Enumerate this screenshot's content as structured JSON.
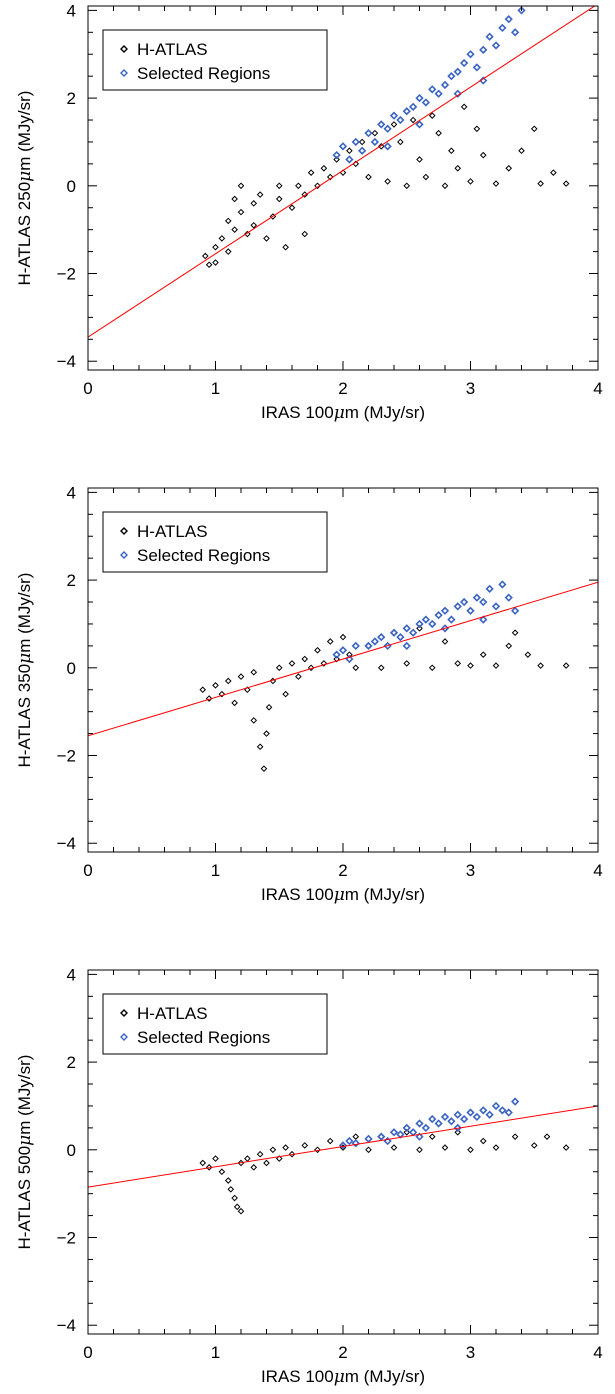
{
  "figure": {
    "panels": [
      {
        "xlabel": {
          "pre": "IRAS 100",
          "mu": "μ",
          "post": "m (MJy/sr)"
        },
        "ylabel": {
          "pre": "H-ATLAS 250",
          "mu": "μ",
          "post": "m (MJy/sr)"
        },
        "legend": [
          "H-ATLAS",
          "Selected Regions"
        ]
      },
      {
        "xlabel": {
          "pre": "IRAS 100",
          "mu": "μ",
          "post": "m (MJy/sr)"
        },
        "ylabel": {
          "pre": "H-ATLAS 350",
          "mu": "μ",
          "post": "m (MJy/sr)"
        },
        "legend": [
          "H-ATLAS",
          "Selected Regions"
        ]
      },
      {
        "xlabel": {
          "pre": "IRAS 100",
          "mu": "μ",
          "post": "m (MJy/sr)"
        },
        "ylabel": {
          "pre": "H-ATLAS 500",
          "mu": "μ",
          "post": "m (MJy/sr)"
        },
        "legend": [
          "H-ATLAS",
          "Selected Regions"
        ]
      }
    ]
  },
  "chart_data": [
    {
      "type": "scatter",
      "xlim": [
        0,
        4
      ],
      "ylim": [
        -4.2,
        4.1
      ],
      "xticks": [
        0,
        1,
        2,
        3,
        4
      ],
      "yticks": [
        -4,
        -2,
        0,
        2,
        4
      ],
      "grid": false,
      "legend_position": "top-left",
      "fit_line": {
        "x": [
          0,
          4
        ],
        "y": [
          -3.45,
          4.15
        ],
        "color": "#ff0000"
      },
      "series": [
        {
          "name": "H-ATLAS",
          "color": "#000000",
          "marker": "diamond",
          "points": [
            [
              0.92,
              -1.6
            ],
            [
              0.95,
              -1.8
            ],
            [
              1.0,
              -1.4
            ],
            [
              1.0,
              -1.75
            ],
            [
              1.05,
              -1.2
            ],
            [
              1.1,
              -1.5
            ],
            [
              1.1,
              -0.8
            ],
            [
              1.15,
              -0.3
            ],
            [
              1.15,
              -1.0
            ],
            [
              1.2,
              0.0
            ],
            [
              1.2,
              -0.6
            ],
            [
              1.25,
              -1.1
            ],
            [
              1.3,
              -0.9
            ],
            [
              1.3,
              -0.4
            ],
            [
              1.35,
              -0.2
            ],
            [
              1.4,
              -1.2
            ],
            [
              1.45,
              -0.7
            ],
            [
              1.5,
              0.0
            ],
            [
              1.5,
              -0.3
            ],
            [
              1.55,
              -1.4
            ],
            [
              1.6,
              -0.5
            ],
            [
              1.65,
              0.0
            ],
            [
              1.7,
              -0.2
            ],
            [
              1.7,
              -1.1
            ],
            [
              1.75,
              0.3
            ],
            [
              1.8,
              0.0
            ],
            [
              1.85,
              0.4
            ],
            [
              1.9,
              0.2
            ],
            [
              1.95,
              0.6
            ],
            [
              2.0,
              0.3
            ],
            [
              2.05,
              0.8
            ],
            [
              2.1,
              0.5
            ],
            [
              2.15,
              1.0
            ],
            [
              2.2,
              0.2
            ],
            [
              2.25,
              1.2
            ],
            [
              2.3,
              0.9
            ],
            [
              2.35,
              0.1
            ],
            [
              2.4,
              1.4
            ],
            [
              2.45,
              1.0
            ],
            [
              2.5,
              0.0
            ],
            [
              2.55,
              1.5
            ],
            [
              2.6,
              0.6
            ],
            [
              2.65,
              0.2
            ],
            [
              2.7,
              1.6
            ],
            [
              2.75,
              1.2
            ],
            [
              2.8,
              0.0
            ],
            [
              2.85,
              0.8
            ],
            [
              2.9,
              0.4
            ],
            [
              2.95,
              1.8
            ],
            [
              3.0,
              0.1
            ],
            [
              3.05,
              1.3
            ],
            [
              3.1,
              0.7
            ],
            [
              3.2,
              0.05
            ],
            [
              3.3,
              0.4
            ],
            [
              3.4,
              0.8
            ],
            [
              3.5,
              1.3
            ],
            [
              3.55,
              0.05
            ],
            [
              3.65,
              0.3
            ],
            [
              3.75,
              0.05
            ]
          ]
        },
        {
          "name": "Selected Regions",
          "color": "#3a64c4",
          "marker": "diamond",
          "points": [
            [
              1.95,
              0.7
            ],
            [
              2.0,
              0.9
            ],
            [
              2.05,
              0.6
            ],
            [
              2.1,
              1.0
            ],
            [
              2.15,
              0.8
            ],
            [
              2.2,
              1.2
            ],
            [
              2.25,
              1.0
            ],
            [
              2.3,
              1.4
            ],
            [
              2.35,
              1.3
            ],
            [
              2.4,
              1.6
            ],
            [
              2.45,
              1.5
            ],
            [
              2.5,
              1.7
            ],
            [
              2.55,
              1.8
            ],
            [
              2.6,
              2.0
            ],
            [
              2.65,
              1.9
            ],
            [
              2.7,
              2.2
            ],
            [
              2.75,
              2.1
            ],
            [
              2.8,
              2.3
            ],
            [
              2.85,
              2.5
            ],
            [
              2.9,
              2.6
            ],
            [
              2.95,
              2.8
            ],
            [
              3.0,
              3.0
            ],
            [
              3.05,
              2.7
            ],
            [
              3.1,
              3.1
            ],
            [
              3.15,
              3.4
            ],
            [
              3.2,
              3.2
            ],
            [
              3.25,
              3.6
            ],
            [
              3.3,
              3.8
            ],
            [
              3.35,
              3.5
            ],
            [
              3.4,
              4.0
            ],
            [
              2.35,
              0.9
            ],
            [
              2.6,
              1.4
            ],
            [
              2.9,
              2.1
            ],
            [
              3.1,
              2.4
            ]
          ]
        }
      ]
    },
    {
      "type": "scatter",
      "xlim": [
        0,
        4
      ],
      "ylim": [
        -4.2,
        4.1
      ],
      "xticks": [
        0,
        1,
        2,
        3,
        4
      ],
      "yticks": [
        -4,
        -2,
        0,
        2,
        4
      ],
      "grid": false,
      "legend_position": "top-left",
      "fit_line": {
        "x": [
          0,
          4
        ],
        "y": [
          -1.55,
          1.95
        ],
        "color": "#ff0000"
      },
      "series": [
        {
          "name": "H-ATLAS",
          "color": "#000000",
          "marker": "diamond",
          "points": [
            [
              0.9,
              -0.5
            ],
            [
              0.95,
              -0.7
            ],
            [
              1.0,
              -0.4
            ],
            [
              1.05,
              -0.6
            ],
            [
              1.1,
              -0.3
            ],
            [
              1.15,
              -0.8
            ],
            [
              1.2,
              -0.2
            ],
            [
              1.25,
              -0.5
            ],
            [
              1.3,
              -1.2
            ],
            [
              1.3,
              -0.1
            ],
            [
              1.35,
              -1.8
            ],
            [
              1.38,
              -2.3
            ],
            [
              1.4,
              -1.5
            ],
            [
              1.42,
              -0.9
            ],
            [
              1.45,
              -0.3
            ],
            [
              1.5,
              0.0
            ],
            [
              1.55,
              -0.6
            ],
            [
              1.6,
              0.1
            ],
            [
              1.65,
              -0.2
            ],
            [
              1.7,
              0.2
            ],
            [
              1.75,
              0.0
            ],
            [
              1.8,
              0.4
            ],
            [
              1.85,
              0.1
            ],
            [
              1.9,
              0.6
            ],
            [
              1.95,
              0.2
            ],
            [
              2.0,
              0.7
            ],
            [
              2.05,
              0.3
            ],
            [
              2.1,
              0.0
            ],
            [
              2.2,
              0.5
            ],
            [
              2.3,
              0.0
            ],
            [
              2.4,
              0.8
            ],
            [
              2.5,
              0.1
            ],
            [
              2.6,
              0.9
            ],
            [
              2.7,
              0.0
            ],
            [
              2.8,
              0.6
            ],
            [
              2.9,
              0.1
            ],
            [
              3.0,
              0.05
            ],
            [
              3.1,
              0.3
            ],
            [
              3.2,
              0.05
            ],
            [
              3.3,
              0.5
            ],
            [
              3.35,
              0.8
            ],
            [
              3.45,
              0.3
            ],
            [
              3.55,
              0.05
            ],
            [
              3.75,
              0.05
            ]
          ]
        },
        {
          "name": "Selected Regions",
          "color": "#3a64c4",
          "marker": "diamond",
          "points": [
            [
              1.95,
              0.3
            ],
            [
              2.0,
              0.4
            ],
            [
              2.05,
              0.2
            ],
            [
              2.1,
              0.5
            ],
            [
              2.2,
              0.5
            ],
            [
              2.25,
              0.6
            ],
            [
              2.3,
              0.7
            ],
            [
              2.35,
              0.5
            ],
            [
              2.4,
              0.8
            ],
            [
              2.45,
              0.7
            ],
            [
              2.5,
              0.9
            ],
            [
              2.55,
              0.8
            ],
            [
              2.6,
              1.0
            ],
            [
              2.65,
              1.1
            ],
            [
              2.7,
              1.0
            ],
            [
              2.75,
              1.2
            ],
            [
              2.8,
              1.3
            ],
            [
              2.85,
              1.1
            ],
            [
              2.9,
              1.4
            ],
            [
              2.95,
              1.5
            ],
            [
              3.0,
              1.3
            ],
            [
              3.05,
              1.6
            ],
            [
              3.1,
              1.5
            ],
            [
              3.15,
              1.8
            ],
            [
              3.2,
              1.4
            ],
            [
              3.25,
              1.9
            ],
            [
              3.3,
              1.6
            ],
            [
              3.35,
              1.3
            ],
            [
              2.5,
              0.5
            ],
            [
              2.8,
              0.9
            ],
            [
              3.1,
              1.1
            ]
          ]
        }
      ]
    },
    {
      "type": "scatter",
      "xlim": [
        0,
        4
      ],
      "ylim": [
        -4.2,
        4.1
      ],
      "xticks": [
        0,
        1,
        2,
        3,
        4
      ],
      "yticks": [
        -4,
        -2,
        0,
        2,
        4
      ],
      "grid": false,
      "legend_position": "top-left",
      "fit_line": {
        "x": [
          0,
          4
        ],
        "y": [
          -0.85,
          1.0
        ],
        "color": "#ff0000"
      },
      "series": [
        {
          "name": "H-ATLAS",
          "color": "#000000",
          "marker": "diamond",
          "points": [
            [
              0.9,
              -0.3
            ],
            [
              0.95,
              -0.4
            ],
            [
              1.0,
              -0.2
            ],
            [
              1.05,
              -0.5
            ],
            [
              1.1,
              -0.7
            ],
            [
              1.12,
              -0.9
            ],
            [
              1.15,
              -1.1
            ],
            [
              1.17,
              -1.3
            ],
            [
              1.2,
              -1.4
            ],
            [
              1.2,
              -0.3
            ],
            [
              1.25,
              -0.2
            ],
            [
              1.3,
              -0.4
            ],
            [
              1.35,
              -0.1
            ],
            [
              1.4,
              -0.3
            ],
            [
              1.45,
              0.0
            ],
            [
              1.5,
              -0.2
            ],
            [
              1.55,
              0.05
            ],
            [
              1.6,
              -0.1
            ],
            [
              1.7,
              0.1
            ],
            [
              1.8,
              0.0
            ],
            [
              1.9,
              0.2
            ],
            [
              2.0,
              0.05
            ],
            [
              2.1,
              0.3
            ],
            [
              2.2,
              0.0
            ],
            [
              2.3,
              0.3
            ],
            [
              2.4,
              0.05
            ],
            [
              2.5,
              0.4
            ],
            [
              2.6,
              0.0
            ],
            [
              2.7,
              0.3
            ],
            [
              2.8,
              0.05
            ],
            [
              2.9,
              0.4
            ],
            [
              3.0,
              0.0
            ],
            [
              3.1,
              0.2
            ],
            [
              3.2,
              0.05
            ],
            [
              3.35,
              0.3
            ],
            [
              3.5,
              0.1
            ],
            [
              3.6,
              0.3
            ],
            [
              3.75,
              0.05
            ]
          ]
        },
        {
          "name": "Selected Regions",
          "color": "#3a64c4",
          "marker": "diamond",
          "points": [
            [
              2.0,
              0.1
            ],
            [
              2.05,
              0.2
            ],
            [
              2.1,
              0.15
            ],
            [
              2.2,
              0.25
            ],
            [
              2.3,
              0.3
            ],
            [
              2.35,
              0.2
            ],
            [
              2.4,
              0.4
            ],
            [
              2.45,
              0.35
            ],
            [
              2.5,
              0.5
            ],
            [
              2.55,
              0.4
            ],
            [
              2.6,
              0.6
            ],
            [
              2.65,
              0.5
            ],
            [
              2.7,
              0.7
            ],
            [
              2.75,
              0.6
            ],
            [
              2.8,
              0.75
            ],
            [
              2.85,
              0.65
            ],
            [
              2.9,
              0.8
            ],
            [
              2.95,
              0.7
            ],
            [
              3.0,
              0.85
            ],
            [
              3.05,
              0.75
            ],
            [
              3.1,
              0.9
            ],
            [
              3.15,
              0.8
            ],
            [
              3.2,
              1.0
            ],
            [
              3.25,
              0.9
            ],
            [
              3.3,
              0.85
            ],
            [
              3.35,
              1.1
            ],
            [
              2.6,
              0.3
            ],
            [
              2.9,
              0.5
            ]
          ]
        }
      ]
    }
  ]
}
